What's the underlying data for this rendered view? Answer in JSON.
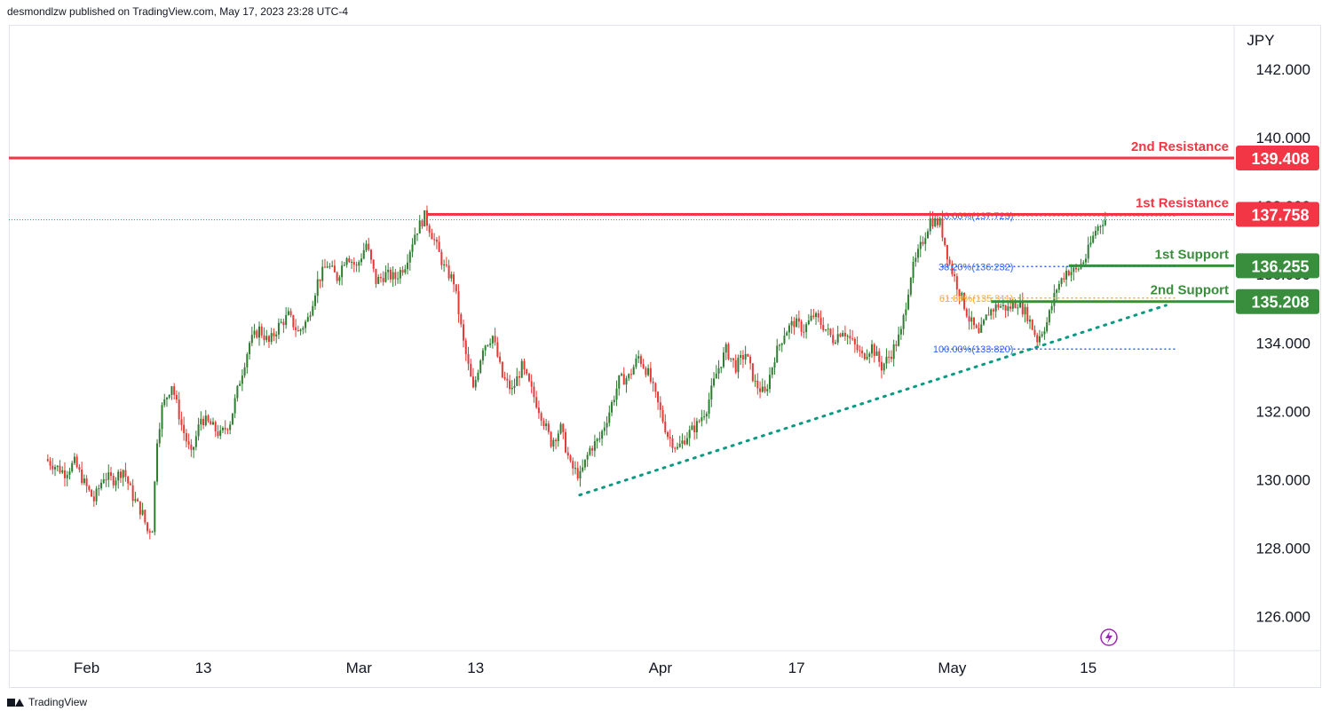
{
  "header": {
    "publisher": "desmondlzw published on TradingView.com, May 17, 2023 23:28 UTC-4"
  },
  "footer": {
    "brand": "TradingView",
    "logo_icon": "tradingview-logo-icon"
  },
  "colors": {
    "up": "#2e7d32",
    "down": "#e53935",
    "resistance": "#f23645",
    "support": "#388e3c",
    "trend": "#089981",
    "fib": "#2962ff",
    "fib618": "#f9a825",
    "lightning": "#9c27b0"
  },
  "chart_data": {
    "type": "candlestick",
    "symbol_unit": "JPY",
    "ylim": [
      125,
      143.3
    ],
    "y_ticks": [
      126,
      128,
      130,
      132,
      134,
      136,
      138,
      140,
      142
    ],
    "y_tick_labels": [
      "126.000",
      "128.000",
      "130.000",
      "132.000",
      "134.000",
      "136.000",
      "138.000",
      "140.000",
      "142.000"
    ],
    "x_ticks": [
      {
        "label": "Feb",
        "day": 4
      },
      {
        "label": "13",
        "day": 16
      },
      {
        "label": "Mar",
        "day": 32
      },
      {
        "label": "13",
        "day": 44
      },
      {
        "label": "Apr",
        "day": 63
      },
      {
        "label": "17",
        "day": 77
      },
      {
        "label": "May",
        "day": 93
      },
      {
        "label": "15",
        "day": 107
      }
    ],
    "xlim": [
      -4,
      122
    ],
    "path_points": [
      [
        0,
        130.6
      ],
      [
        1,
        130.4
      ],
      [
        2,
        130.2
      ],
      [
        3,
        130.5
      ],
      [
        4,
        129.9
      ],
      [
        5,
        129.4
      ],
      [
        6,
        130.1
      ],
      [
        7,
        130.0
      ],
      [
        8,
        130.3
      ],
      [
        9,
        129.5
      ],
      [
        10,
        129.0
      ],
      [
        10.5,
        128.5
      ],
      [
        11,
        128.6
      ],
      [
        11.5,
        131.2
      ],
      [
        12,
        132.1
      ],
      [
        13,
        132.8
      ],
      [
        14,
        131.6
      ],
      [
        15,
        130.7
      ],
      [
        16,
        131.8
      ],
      [
        17,
        131.6
      ],
      [
        18,
        131.3
      ],
      [
        19,
        131.7
      ],
      [
        20,
        132.9
      ],
      [
        21,
        134.0
      ],
      [
        22,
        134.4
      ],
      [
        23,
        134.0
      ],
      [
        24,
        134.5
      ],
      [
        25,
        134.8
      ],
      [
        26,
        134.3
      ],
      [
        27,
        134.7
      ],
      [
        28,
        135.8
      ],
      [
        29,
        136.3
      ],
      [
        30,
        135.9
      ],
      [
        31,
        136.6
      ],
      [
        32,
        136.2
      ],
      [
        33,
        136.9
      ],
      [
        34,
        135.8
      ],
      [
        35,
        136.0
      ],
      [
        36,
        135.9
      ],
      [
        37,
        136.3
      ],
      [
        38,
        137.2
      ],
      [
        39,
        137.7
      ],
      [
        40,
        137.0
      ],
      [
        41,
        136.2
      ],
      [
        42,
        135.8
      ],
      [
        43,
        134.0
      ],
      [
        44,
        132.6
      ],
      [
        45,
        133.9
      ],
      [
        46,
        134.2
      ],
      [
        47,
        133.0
      ],
      [
        48,
        132.6
      ],
      [
        49,
        133.3
      ],
      [
        50,
        132.6
      ],
      [
        51,
        131.9
      ],
      [
        52,
        131.1
      ],
      [
        53,
        131.5
      ],
      [
        54,
        130.4
      ],
      [
        55,
        130.1
      ],
      [
        56,
        130.9
      ],
      [
        57,
        131.2
      ],
      [
        58,
        132.0
      ],
      [
        59,
        132.9
      ],
      [
        60,
        133.0
      ],
      [
        61,
        133.6
      ],
      [
        62,
        133.1
      ],
      [
        63,
        132.2
      ],
      [
        64,
        131.3
      ],
      [
        65,
        130.9
      ],
      [
        66,
        131.3
      ],
      [
        67,
        131.6
      ],
      [
        68,
        132.1
      ],
      [
        69,
        133.1
      ],
      [
        70,
        133.8
      ],
      [
        71,
        133.3
      ],
      [
        72,
        133.7
      ],
      [
        73,
        132.8
      ],
      [
        74,
        132.5
      ],
      [
        75,
        133.6
      ],
      [
        76,
        134.3
      ],
      [
        77,
        134.6
      ],
      [
        78,
        134.4
      ],
      [
        79,
        134.8
      ],
      [
        80,
        134.5
      ],
      [
        81,
        134.1
      ],
      [
        82,
        134.4
      ],
      [
        83,
        134.0
      ],
      [
        84,
        133.6
      ],
      [
        85,
        133.9
      ],
      [
        86,
        133.3
      ],
      [
        87,
        133.7
      ],
      [
        88,
        134.3
      ],
      [
        89,
        136.0
      ],
      [
        90,
        136.8
      ],
      [
        91,
        137.6
      ],
      [
        92,
        137.5
      ],
      [
        93,
        136.3
      ],
      [
        94,
        135.5
      ],
      [
        95,
        134.7
      ],
      [
        96,
        134.2
      ],
      [
        97,
        134.9
      ],
      [
        98,
        135.1
      ],
      [
        99,
        135.0
      ],
      [
        100,
        135.2
      ],
      [
        101,
        134.8
      ],
      [
        102,
        134.1
      ],
      [
        103,
        134.6
      ],
      [
        104,
        135.6
      ],
      [
        105,
        136.1
      ],
      [
        106,
        136.1
      ],
      [
        107,
        136.5
      ],
      [
        108,
        137.3
      ],
      [
        108.8,
        137.6
      ]
    ],
    "levels": [
      {
        "name": "2nd Resistance",
        "value": 139.408,
        "label": "139.408",
        "kind": "resistance",
        "x_start_day": -4
      },
      {
        "name": "1st Resistance",
        "value": 137.758,
        "label": "137.758",
        "kind": "resistance",
        "x_start_day": 39
      },
      {
        "name": "1st Support",
        "value": 136.255,
        "label": "136.255",
        "kind": "support",
        "x_start_day": 105
      },
      {
        "name": "2nd Support",
        "value": 135.208,
        "label": "135.208",
        "kind": "support",
        "x_start_day": 97
      }
    ],
    "fibonacci": [
      {
        "label": "0.00%(137.723)",
        "value": 137.723,
        "kind": "fib"
      },
      {
        "label": "38.20%(136.232)",
        "value": 136.232,
        "kind": "fib"
      },
      {
        "label": "61.80%(135.311)",
        "value": 135.311,
        "kind": "fib618"
      },
      {
        "label": "100.00%(133.820)",
        "value": 133.82,
        "kind": "fib"
      }
    ],
    "fib_x_range": [
      92,
      116
    ],
    "last_price_value": 137.6,
    "trendline": {
      "start": [
        54.7,
        129.55
      ],
      "end": [
        115,
        135.1
      ]
    }
  }
}
